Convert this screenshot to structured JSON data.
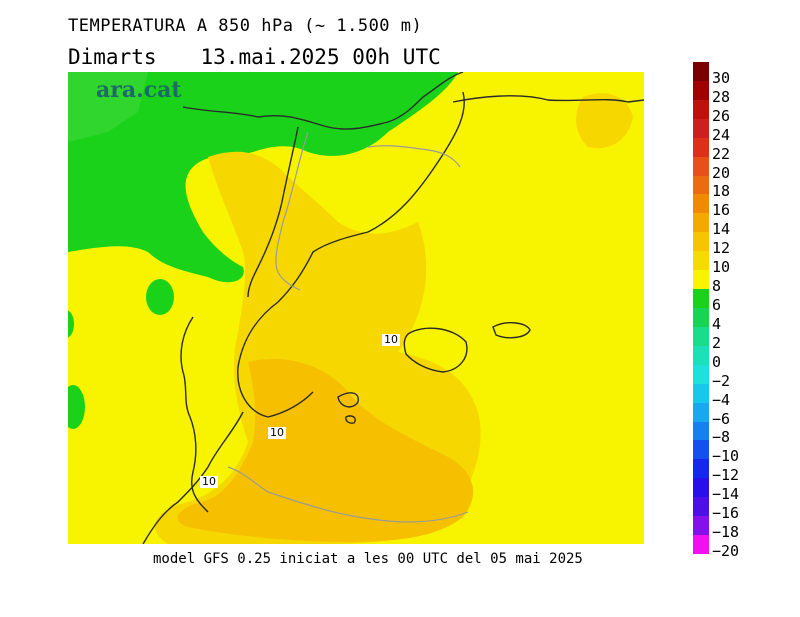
{
  "title": "TEMPERATURA A 850 hPa (~ 1.500 m)",
  "subtitle": {
    "day": "Dimarts",
    "datetime": "13.mai.2025 00h UTC"
  },
  "brand": "ara.cat",
  "caption": "model GFS 0.25 iniciat a les 00 UTC del 05 mai 2025",
  "contour_labels": [
    "10",
    "10",
    "10"
  ],
  "legend": {
    "labels": [
      "30",
      "28",
      "26",
      "24",
      "22",
      "20",
      "18",
      "16",
      "14",
      "12",
      "10",
      "8",
      "6",
      "4",
      "2",
      "0",
      "-2",
      "-4",
      "-6",
      "-8",
      "-10",
      "-12",
      "-14",
      "-16",
      "-18",
      "-20"
    ],
    "colors": [
      "#7a0000",
      "#a00000",
      "#bf1010",
      "#cc2020",
      "#dd3018",
      "#e8501a",
      "#ec6a10",
      "#f08a00",
      "#f5a800",
      "#f6c400",
      "#f5dc00",
      "#f8f400",
      "#19d219",
      "#17d454",
      "#19dd8a",
      "#1ce0b8",
      "#20e0dc",
      "#18c8ec",
      "#18a8f0",
      "#1680f0",
      "#1450f0",
      "#1628ec",
      "#2a10e8",
      "#4c10e6",
      "#8410ea",
      "#f010f0"
    ]
  }
}
